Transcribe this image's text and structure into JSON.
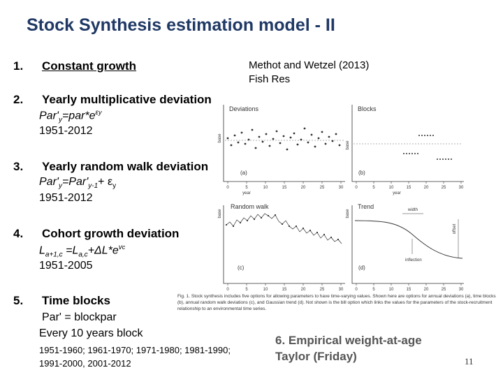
{
  "slide": {
    "title": "Stock Synthesis estimation model - II",
    "page_number": "11"
  },
  "items": [
    {
      "num": "1.",
      "heading": "Constant growth"
    },
    {
      "num": "2.",
      "heading": "Yearly multiplicative deviation",
      "years": "1951-2012"
    },
    {
      "num": "3.",
      "heading": "Yearly random walk deviation",
      "years": "1951-2012"
    },
    {
      "num": "4.",
      "heading": "Cohort growth deviation",
      "years": "1951-2005"
    },
    {
      "num": "5.",
      "heading": "Time blocks",
      "formula": "Par' = blockpar",
      "every": "Every 10 years block",
      "years": "1951-1960; 1961-1970; 1971-1980; 1981-1990;",
      "years2": "1991-2000, 2001-2012"
    }
  ],
  "citation": {
    "line1": "Methot and Wetzel (2013)",
    "line2": "Fish Res"
  },
  "figure": {
    "panels": {
      "a_title": "Deviations",
      "b_title": "Blocks",
      "c_title": "Random walk",
      "d_title": "Trend",
      "a_label": "(a)",
      "b_label": "(b)",
      "c_label": "(c)",
      "d_label": "(d)",
      "ylabel_base": "base",
      "ylabel_offset": "offset",
      "xlabel_year": "year",
      "width_label": "width",
      "inflection_label": "inflection",
      "xticks": [
        "0",
        "5",
        "10",
        "15",
        "20",
        "25",
        "30"
      ]
    },
    "caption": "Fig. 1. Stock synthesis includes five options for allowing parameters to have time-varying values. Shown here are options for annual deviations (a), time blocks (b), annual random walk deviations (c), and Gaussian trend (d). Not shown is the bill option which links the values for the parameters of the stock-recruitment relationship to an environmental time series."
  },
  "empirical": {
    "line1": "6. Empirical weight-at-age",
    "line2": "Taylor (Friday)"
  }
}
